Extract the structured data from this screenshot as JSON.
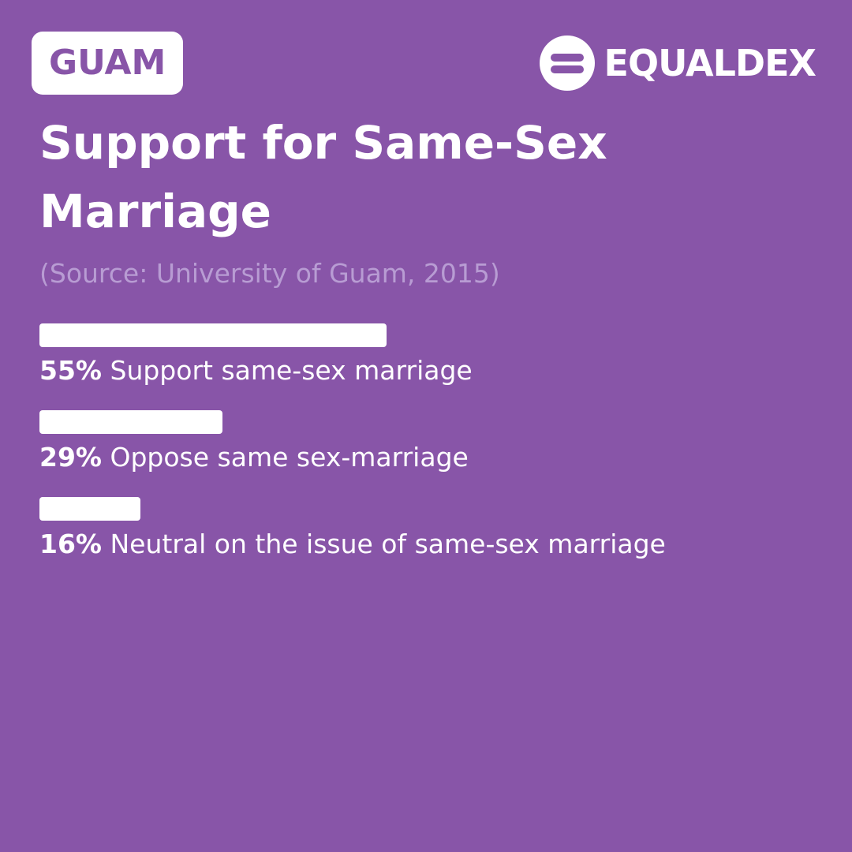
{
  "chart_data": {
    "type": "bar",
    "orientation": "horizontal",
    "region": "GUAM",
    "brand": "EQUALDEX",
    "title": "Support for Same-Sex Marriage",
    "subtitle": "(Source: University of Guam, 2015)",
    "categories": [
      "Support same-sex marriage",
      "Oppose same sex-marriage",
      "Neutral on the issue of same-sex marriage"
    ],
    "values": [
      55,
      29,
      16
    ],
    "value_labels": [
      "55%",
      "29%",
      "16%"
    ],
    "color": "#ffffff"
  }
}
